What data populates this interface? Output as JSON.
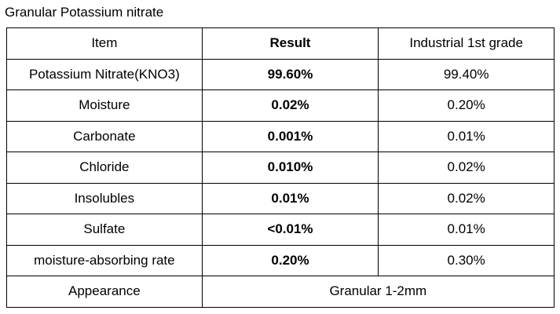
{
  "title": "Granular Potassium nitrate",
  "table": {
    "header": [
      "Item",
      "Result",
      "Industrial 1st grade"
    ],
    "rows": [
      [
        "Potassium Nitrate(KNO3)",
        "99.60%",
        "99.40%"
      ],
      [
        "Moisture",
        "0.02%",
        "0.20%"
      ],
      [
        "Carbonate",
        "0.001%",
        "0.01%"
      ],
      [
        "Chloride",
        "0.010%",
        "0.02%"
      ],
      [
        "Insolubles",
        "0.01%",
        "0.02%"
      ],
      [
        "Sulfate",
        "<0.01%",
        "0.01%"
      ],
      [
        "moisture-absorbing rate",
        "0.20%",
        "0.30%"
      ]
    ],
    "footer": [
      "Appearance",
      "Granular 1-2mm"
    ]
  }
}
